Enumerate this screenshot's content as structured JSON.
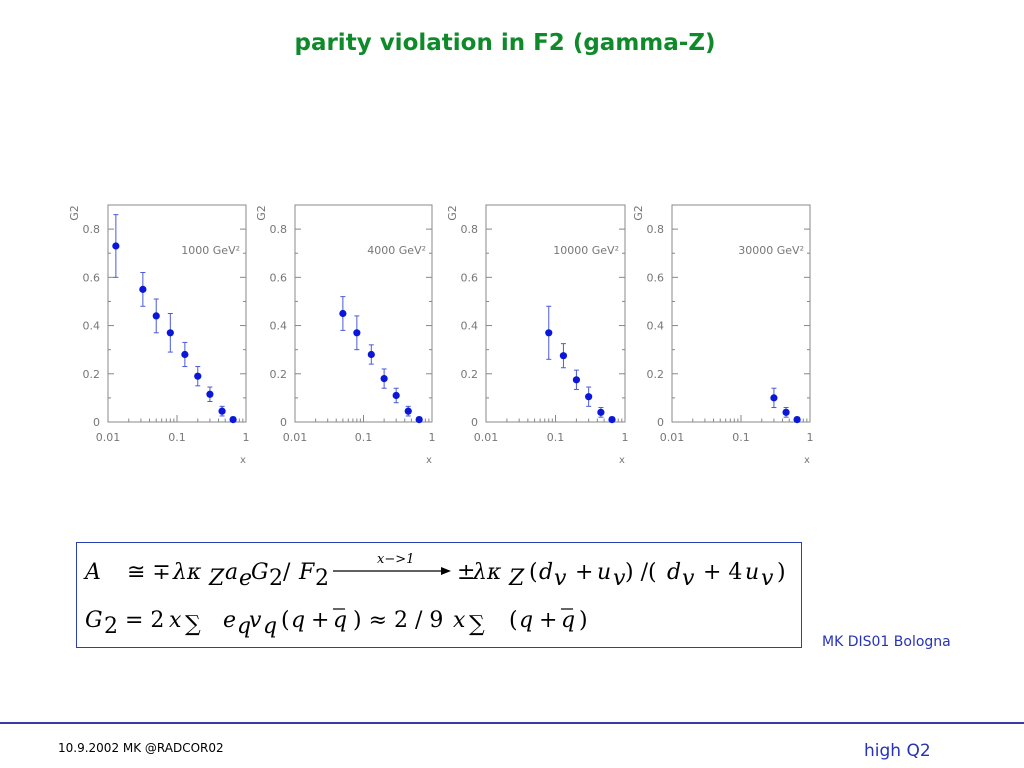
{
  "title": "parity violation in F2 (gamma-Z)",
  "footer": {
    "left": "10.9.2002 MK @RADCOR02",
    "right": "high Q2",
    "credit": "MK DIS01 Bologna"
  },
  "formula": {
    "line1": "A ≅ ∓λκZ ae G2 / F2 —x→1→ ±λκZ (dv + uv) / (dv + 4uv)",
    "line2": "G2 = 2x Σ eq vq (q + q̄) ≈ 2/9x Σ (q + q̄)",
    "arrow_label": "x−>1"
  },
  "colors": {
    "marker": "#0a16d8",
    "axis": "#888888",
    "title": "#0f8a2a",
    "accent": "#2633b8"
  },
  "chart_data": [
    {
      "type": "scatter",
      "xscale": "log",
      "xlim": [
        0.01,
        1
      ],
      "ylim": [
        0,
        0.9
      ],
      "ylabel": "G2",
      "xlabel": "x",
      "annotation": "1000 GeV²",
      "xticks": [
        "0.01",
        "0.1",
        "1"
      ],
      "yticks": [
        "0",
        "0.2",
        "0.4",
        "0.6",
        "0.8"
      ],
      "points": [
        {
          "x": 0.013,
          "y": 0.73,
          "err": 0.13
        },
        {
          "x": 0.032,
          "y": 0.55,
          "err": 0.07
        },
        {
          "x": 0.05,
          "y": 0.44,
          "err": 0.07
        },
        {
          "x": 0.08,
          "y": 0.37,
          "err": 0.08
        },
        {
          "x": 0.13,
          "y": 0.28,
          "err": 0.05
        },
        {
          "x": 0.2,
          "y": 0.19,
          "err": 0.04
        },
        {
          "x": 0.3,
          "y": 0.115,
          "err": 0.03
        },
        {
          "x": 0.45,
          "y": 0.045,
          "err": 0.02
        },
        {
          "x": 0.65,
          "y": 0.01,
          "err": 0.01
        }
      ]
    },
    {
      "type": "scatter",
      "xscale": "log",
      "xlim": [
        0.01,
        1
      ],
      "ylim": [
        0,
        0.9
      ],
      "ylabel": "G2",
      "xlabel": "x",
      "annotation": "4000 GeV²",
      "xticks": [
        "0.01",
        "0.1",
        "1"
      ],
      "yticks": [
        "0",
        "0.2",
        "0.4",
        "0.6",
        "0.8"
      ],
      "points": [
        {
          "x": 0.05,
          "y": 0.45,
          "err": 0.07
        },
        {
          "x": 0.08,
          "y": 0.37,
          "err": 0.07
        },
        {
          "x": 0.13,
          "y": 0.28,
          "err": 0.04
        },
        {
          "x": 0.2,
          "y": 0.18,
          "err": 0.04
        },
        {
          "x": 0.3,
          "y": 0.11,
          "err": 0.03
        },
        {
          "x": 0.45,
          "y": 0.045,
          "err": 0.02
        },
        {
          "x": 0.65,
          "y": 0.01,
          "err": 0.01
        }
      ]
    },
    {
      "type": "scatter",
      "xscale": "log",
      "xlim": [
        0.01,
        1
      ],
      "ylim": [
        0,
        0.9
      ],
      "ylabel": "G2",
      "xlabel": "x",
      "annotation": "10000 GeV²",
      "xticks": [
        "0.01",
        "0.1",
        "1"
      ],
      "yticks": [
        "0",
        "0.2",
        "0.4",
        "0.6",
        "0.8"
      ],
      "points": [
        {
          "x": 0.08,
          "y": 0.37,
          "err": 0.11
        },
        {
          "x": 0.13,
          "y": 0.275,
          "err": 0.05
        },
        {
          "x": 0.2,
          "y": 0.175,
          "err": 0.04
        },
        {
          "x": 0.3,
          "y": 0.105,
          "err": 0.04
        },
        {
          "x": 0.45,
          "y": 0.04,
          "err": 0.02
        },
        {
          "x": 0.65,
          "y": 0.01,
          "err": 0.01
        }
      ]
    },
    {
      "type": "scatter",
      "xscale": "log",
      "xlim": [
        0.01,
        1
      ],
      "ylim": [
        0,
        0.9
      ],
      "ylabel": "G2",
      "xlabel": "x",
      "annotation": "30000 GeV²",
      "xticks": [
        "0.01",
        "0.1",
        "1"
      ],
      "yticks": [
        "0",
        "0.2",
        "0.4",
        "0.6",
        "0.8"
      ],
      "points": [
        {
          "x": 0.3,
          "y": 0.1,
          "err": 0.04
        },
        {
          "x": 0.45,
          "y": 0.04,
          "err": 0.02
        },
        {
          "x": 0.65,
          "y": 0.01,
          "err": 0.01
        }
      ]
    }
  ]
}
